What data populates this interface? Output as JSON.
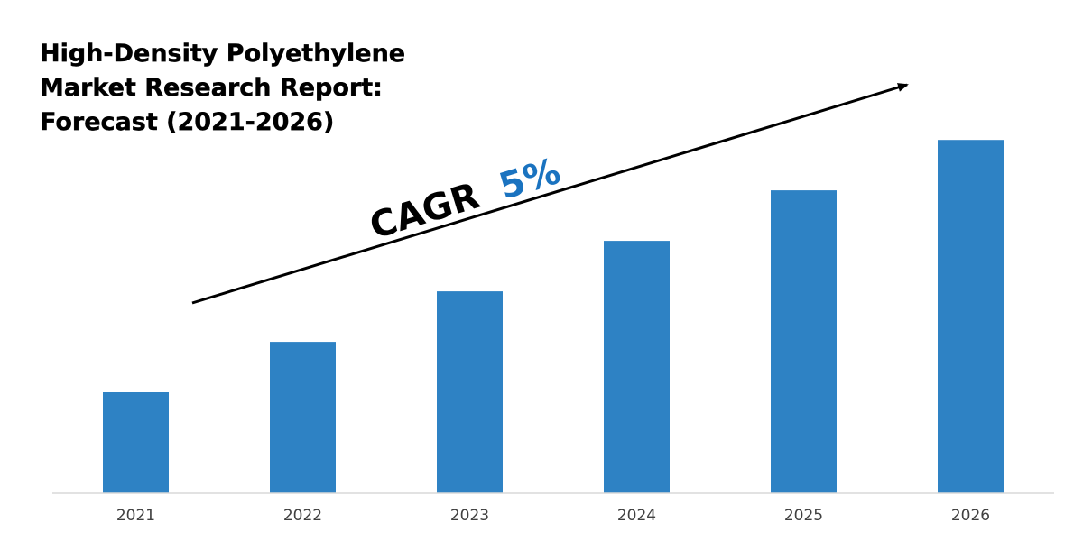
{
  "chart_data": {
    "type": "bar",
    "title_lines": [
      "High-Density Polyethylene",
      "Market Research Report:",
      "Forecast (2021-2026)"
    ],
    "categories": [
      "2021",
      "2022",
      "2023",
      "2024",
      "2025",
      "2026"
    ],
    "values": [
      1.0,
      1.5,
      2.0,
      2.5,
      3.0,
      3.5
    ],
    "ylim": [
      0,
      4.35
    ],
    "grid": false,
    "legend": "none",
    "annotation": {
      "prefix": "CAGR",
      "value": "5%",
      "arrow": "rising trend arrow above bars"
    },
    "colors": {
      "bar": "#2e82c4",
      "accent": "#1a73c0",
      "text": "#000000",
      "tick": "#404040",
      "axis": "#d9d9d9"
    }
  }
}
